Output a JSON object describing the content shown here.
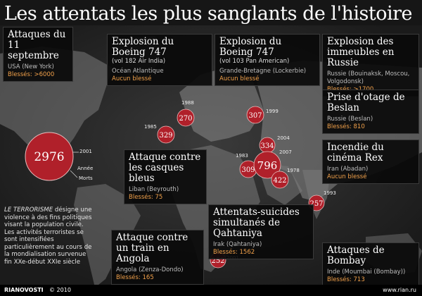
{
  "title": "Les attentats les plus sanglants de l'histoire",
  "cards": [
    {
      "key": "sept11",
      "title": "Attaques du 11 septembre",
      "subtitle": "",
      "location": "USA (New York)",
      "victims": "Blessés: >6000"
    },
    {
      "key": "air_india",
      "title": "Explosion du Boeing 747",
      "subtitle": "(vol 182 Air India)",
      "location": "Océan Atlantique",
      "victims": "Aucun blessé"
    },
    {
      "key": "pan_am",
      "title": "Explosion du Boeing 747",
      "subtitle": "(vol 103 Pan American)",
      "location": "Grande-Bretagne (Lockerbie)",
      "victims": "Aucun blessé"
    },
    {
      "key": "russia_buildings",
      "title": "Explosion des immeubles en Russie",
      "subtitle": "",
      "location": "Russie (Bouinaksk, Moscou, Volgodonsk)",
      "victims": "Blessés: >1700"
    },
    {
      "key": "beslan",
      "title": "Prise d'otage de Beslan",
      "subtitle": "",
      "location": "Russie (Beslan)",
      "victims": "Blessés: 810"
    },
    {
      "key": "cinema_rex",
      "title": "Incendie du cinéma Rex",
      "subtitle": "",
      "location": "Iran (Abadan)",
      "victims": "Aucun blessé"
    },
    {
      "key": "blue_helmets",
      "title": "Attaque contre les casques bleus",
      "subtitle": "",
      "location": "Liban (Beyrouth)",
      "victims": "Blessés: 75"
    },
    {
      "key": "qahtaniya",
      "title": "Attentats-suicides simultanés de Qahtaniya",
      "subtitle": "",
      "location": "Irak (Qahtaniya)",
      "victims": "Blessés: 1562"
    },
    {
      "key": "angola",
      "title": "Attaque contre un train en Angola",
      "subtitle": "",
      "location": "Angola (Zenza-Dondo)",
      "victims": "Blessés: 165"
    },
    {
      "key": "bombay",
      "title": "Attaques de Bombay",
      "subtitle": "",
      "location": "Inde (Moumbai (Bombay))",
      "victims": "Blessés: 713"
    }
  ],
  "markers": {
    "deaths_2001": "2976",
    "year_2001": "2001",
    "label_annee": "Année",
    "label_morts": "Morts",
    "m329": "329",
    "y1985": "1985",
    "m270": "270",
    "y1988": "1988",
    "m307": "307",
    "y1999": "1999",
    "m334": "334",
    "y2004": "2004",
    "m309": "309",
    "y1983": "1983",
    "m796": "796",
    "y2007": "2007",
    "m422": "422",
    "y1978": "1978",
    "m257": "257",
    "y1993": "1993",
    "m252": "252",
    "y2001b": "2001"
  },
  "note": {
    "term": "LE TERRORISME",
    "text": " désigne une violence à des fins politiques visant la population civile. Les activités terroristes se sont intensifiées particulièrement au cours de la mondialisation survenue fin XXe-début XXIe siècle"
  },
  "footer": {
    "brand": "RIANOVOSTI",
    "copyright": "© 2010",
    "site": "www.rian.ru"
  },
  "colors": {
    "marker": "#b0202a",
    "victims": "#f2a14a",
    "background": "#161616"
  }
}
